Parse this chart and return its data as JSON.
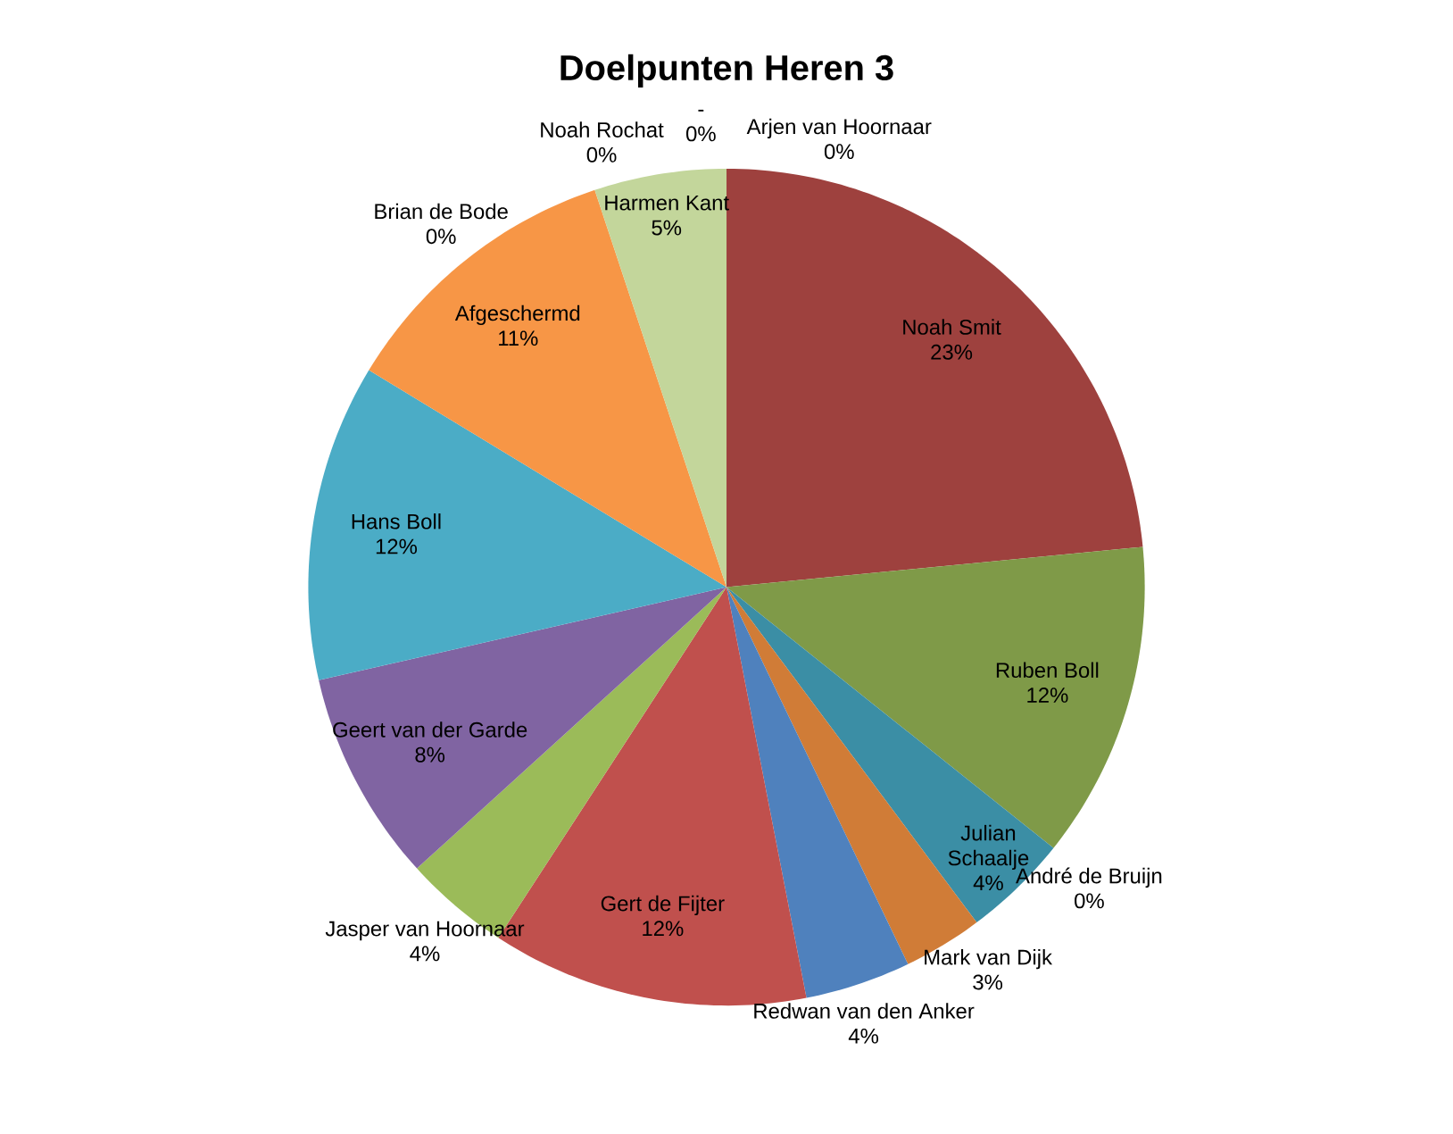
{
  "chart_data": {
    "type": "pie",
    "title": "Doelpunten Heren 3",
    "categories": [
      "-",
      "Arjen van Hoornaar",
      "Noah Smit",
      "Ruben Boll",
      "Julian Schaalje",
      "André de Bruijn",
      "Mark van Dijk",
      "Redwan van den Anker",
      "Gert de Fijter",
      "Jasper van Hoornaar",
      "Geert van der Garde",
      "Hans Boll",
      "Afgeschermd",
      "Brian de Bode",
      "Noah Rochat",
      "Harmen Kant"
    ],
    "values": [
      0,
      0,
      23,
      12,
      4,
      0,
      3,
      4,
      12,
      4,
      8,
      12,
      11,
      0,
      0,
      5
    ],
    "value_labels": [
      "0%",
      "0%",
      "23%",
      "12%",
      "4%",
      "0%",
      "3%",
      "4%",
      "12%",
      "4%",
      "8%",
      "12%",
      "11%",
      "0%",
      "0%",
      "5%"
    ],
    "colors": [
      "#4f81bd",
      "#c0504d",
      "#9e413e",
      "#7f9a48",
      "#3b8ea5",
      "#8064a2",
      "#d07c37",
      "#4f81bd",
      "#c0504d",
      "#9bbb59",
      "#8064a2",
      "#4bacc6",
      "#f79646",
      "#2c4d75",
      "#772c2a",
      "#c3d69b"
    ]
  }
}
